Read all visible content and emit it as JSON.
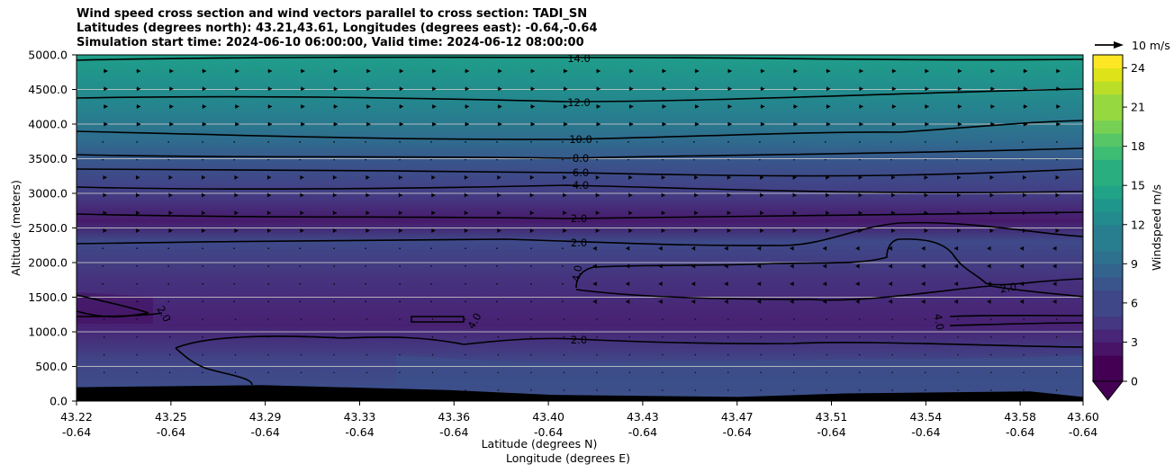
{
  "title_lines": [
    "Wind speed cross section and wind vectors parallel to cross section: TADI_SN",
    "Latitudes (degrees north): 43.21,43.61, Longitudes (degrees east): -0.64,-0.64",
    "Simulation start time: 2024-06-10 06:00:00, Valid time: 2024-06-12 08:00:00"
  ],
  "chart_data": {
    "type": "heatmap",
    "ylabel": "Altitude (meters)",
    "xlabel_lines": [
      "Latitude (degrees N)",
      "Longitude (degrees E)"
    ],
    "ylim": [
      0,
      5000
    ],
    "y_ticks": [
      "0.0",
      "500.0",
      "1000.0",
      "1500.0",
      "2000.0",
      "2500.0",
      "3000.0",
      "3500.0",
      "4000.0",
      "4500.0",
      "5000.0"
    ],
    "y_tick_values": [
      0,
      500,
      1000,
      1500,
      2000,
      2500,
      3000,
      3500,
      4000,
      4500,
      5000
    ],
    "x_ticks": [
      {
        "lat": "43.22",
        "lon": "-0.64"
      },
      {
        "lat": "43.25",
        "lon": "-0.64"
      },
      {
        "lat": "43.29",
        "lon": "-0.64"
      },
      {
        "lat": "43.33",
        "lon": "-0.64"
      },
      {
        "lat": "43.36",
        "lon": "-0.64"
      },
      {
        "lat": "43.40",
        "lon": "-0.64"
      },
      {
        "lat": "43.43",
        "lon": "-0.64"
      },
      {
        "lat": "43.47",
        "lon": "-0.64"
      },
      {
        "lat": "43.51",
        "lon": "-0.64"
      },
      {
        "lat": "43.54",
        "lon": "-0.64"
      },
      {
        "lat": "43.58",
        "lon": "-0.64"
      },
      {
        "lat": "43.60",
        "lon": "-0.64"
      }
    ],
    "x_tick_fractions": [
      0.0,
      0.0938,
      0.1875,
      0.2813,
      0.375,
      0.4688,
      0.5625,
      0.6563,
      0.75,
      0.8438,
      0.9375,
      1.0
    ],
    "colorbar": {
      "label": "Windspeed m/s",
      "min": 0,
      "max": 25,
      "ticks": [
        "0",
        "3",
        "6",
        "9",
        "12",
        "15",
        "18",
        "21",
        "24"
      ],
      "tick_values": [
        0,
        3,
        6,
        9,
        12,
        15,
        18,
        21,
        24
      ],
      "colormap": "viridis",
      "extend": "min"
    },
    "vector_key_label": "10 m/s",
    "contour_labels": [
      "14.0",
      "12.0",
      "10.0",
      "8.0",
      "6.0",
      "4.0",
      "2.0",
      "2.0",
      "4.0",
      "2.0",
      "2.0",
      "4.0",
      "2.0",
      "4.0"
    ],
    "bands": [
      {
        "alt": 0,
        "speed": 6
      },
      {
        "alt": 500,
        "speed": 5
      },
      {
        "alt": 1000,
        "speed": 3
      },
      {
        "alt": 1500,
        "speed": 3
      },
      {
        "alt": 2000,
        "speed": 4
      },
      {
        "alt": 2500,
        "speed": 1.5
      },
      {
        "alt": 3000,
        "speed": 4
      },
      {
        "alt": 3500,
        "speed": 7.5
      },
      {
        "alt": 4000,
        "speed": 11
      },
      {
        "alt": 4500,
        "speed": 13
      },
      {
        "alt": 5000,
        "speed": 14.5
      }
    ],
    "terrain": [
      {
        "lat": 43.22,
        "alt": 200
      },
      {
        "lat": 43.29,
        "alt": 230
      },
      {
        "lat": 43.36,
        "alt": 160
      },
      {
        "lat": 43.4,
        "alt": 90
      },
      {
        "lat": 43.47,
        "alt": 60
      },
      {
        "lat": 43.51,
        "alt": 110
      },
      {
        "lat": 43.58,
        "alt": 140
      },
      {
        "lat": 43.6,
        "alt": 60
      }
    ]
  }
}
